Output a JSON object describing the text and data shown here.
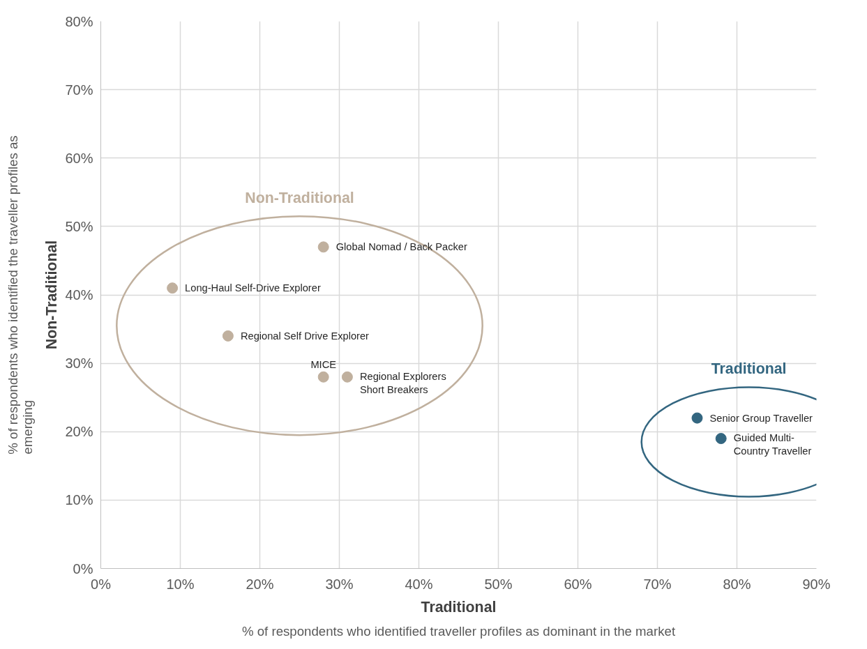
{
  "chart_data": {
    "type": "scatter",
    "xlabel": "Traditional\n% of respondents who identified traveller profiles as dominant in the market",
    "ylabel": "Non-Traditional\n% of respondents who identified the traveller profiles as\nemerging",
    "xlim": [
      0,
      90
    ],
    "ylim": [
      0,
      80
    ],
    "xticks": [
      {
        "value": 0,
        "label": "0%"
      },
      {
        "value": 10,
        "label": "10%"
      },
      {
        "value": 20,
        "label": "20%"
      },
      {
        "value": 30,
        "label": "30%"
      },
      {
        "value": 40,
        "label": "40%"
      },
      {
        "value": 50,
        "label": "50%"
      },
      {
        "value": 60,
        "label": "60%"
      },
      {
        "value": 70,
        "label": "70%"
      },
      {
        "value": 80,
        "label": "80%"
      },
      {
        "value": 90,
        "label": "90%"
      }
    ],
    "yticks": [
      {
        "value": 0,
        "label": "0%"
      },
      {
        "value": 10,
        "label": "10%"
      },
      {
        "value": 20,
        "label": "20%"
      },
      {
        "value": 30,
        "label": "30%"
      },
      {
        "value": 40,
        "label": "40%"
      },
      {
        "value": 50,
        "label": "50%"
      },
      {
        "value": 60,
        "label": "60%"
      },
      {
        "value": 70,
        "label": "70%"
      },
      {
        "value": 80,
        "label": "80%"
      }
    ],
    "grid": true,
    "marker": "circle",
    "legend": false,
    "series": [
      {
        "name": "Non-Traditional",
        "color": "#c0b09e",
        "x": [
          28,
          9,
          16,
          28,
          31
        ],
        "values": [
          47,
          41,
          34,
          28,
          28
        ]
      },
      {
        "name": "Traditional",
        "color": "#336680",
        "x": [
          75,
          78
        ],
        "values": [
          22,
          19
        ]
      }
    ],
    "annotations": [
      {
        "text": "Global Nomad / Back Packer",
        "x": 28,
        "y": 47
      },
      {
        "text": "Long-Haul Self-Drive Explorer",
        "x": 9,
        "y": 41
      },
      {
        "text": "Regional Self Drive Explorer",
        "x": 16,
        "y": 34
      },
      {
        "text": "MICE",
        "x": 28,
        "y": 28
      },
      {
        "text": "Regional Explorers\nShort Breakers",
        "x": 31,
        "y": 28
      },
      {
        "text": "Senior Group Traveller",
        "x": 75,
        "y": 22
      },
      {
        "text": "Guided Multi-\nCountry Traveller",
        "x": 78,
        "y": 19
      }
    ]
  }
}
